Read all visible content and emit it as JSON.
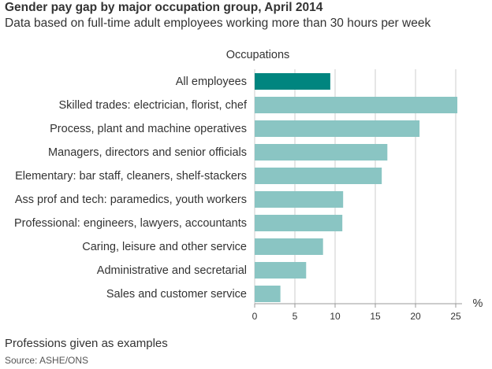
{
  "title": "Gender pay gap by major occupation group, April 2014",
  "subtitle": "Data based on full-time adult employees working more than 30 hours per week",
  "footnote": "Professions given as examples",
  "source": "Source: ASHE/ONS",
  "colors": {
    "highlight": "#00857f",
    "bar": "#8ac5c3",
    "grid": "#cccccc",
    "axis": "#999999"
  },
  "chart_data": {
    "type": "bar",
    "orientation": "horizontal",
    "ylabel": "Occupations",
    "xlabel": "%",
    "xlim": [
      0,
      25
    ],
    "xticks": [
      0,
      5,
      10,
      15,
      20,
      25
    ],
    "grid": true,
    "categories": [
      "All employees",
      "Skilled trades: electrician, florist, chef",
      "Process, plant and machine operatives",
      "Managers, directors and senior officials",
      "Elementary: bar staff, cleaners, shelf-stackers",
      "Ass prof and tech: paramedics, youth workers",
      "Professional: engineers, lawyers, accountants",
      "Caring, leisure and other service",
      "Administrative and secretarial",
      "Sales and customer service"
    ],
    "values": [
      9.4,
      25.2,
      20.5,
      16.5,
      15.8,
      11.0,
      10.9,
      8.5,
      6.4,
      3.2
    ],
    "highlight_index": 0
  }
}
